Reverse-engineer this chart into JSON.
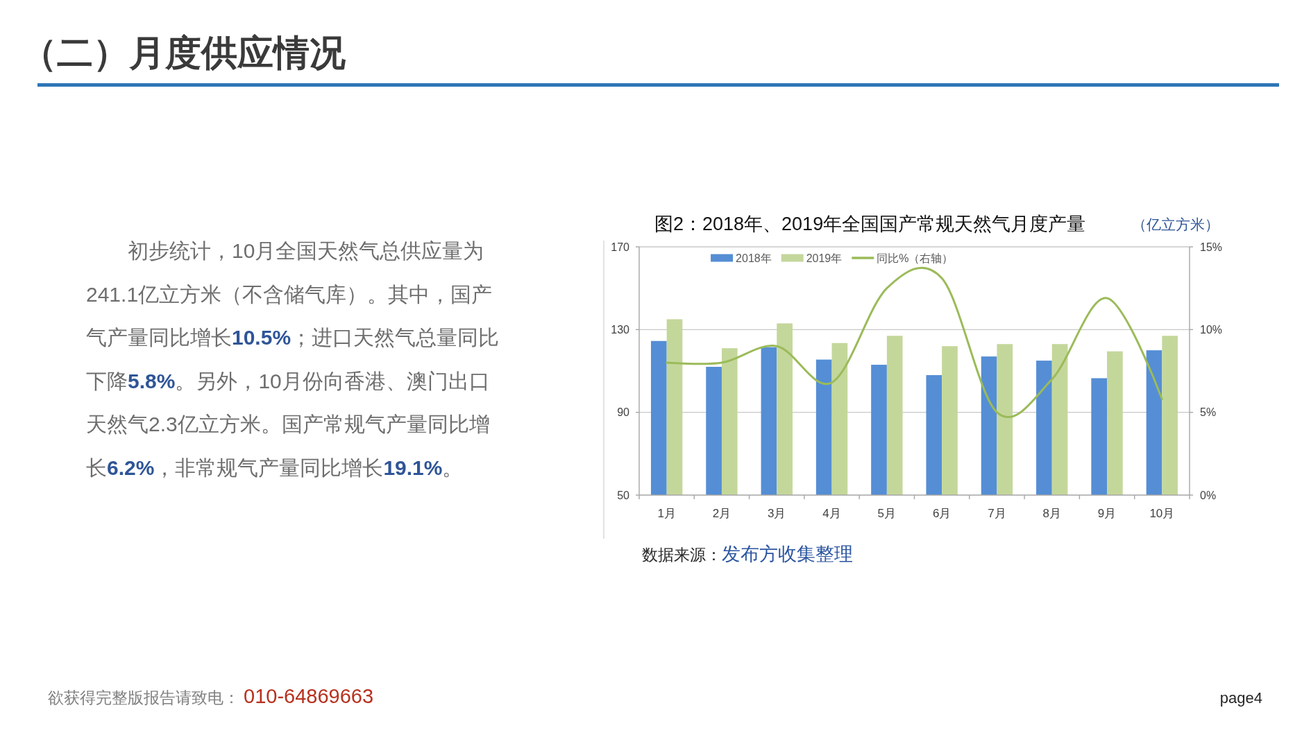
{
  "chart_data": {
    "type": "bar",
    "title": "图2：2018年、2019年全国国产常规天然气月度产量",
    "categories": [
      "1月",
      "2月",
      "3月",
      "4月",
      "5月",
      "6月",
      "7月",
      "8月",
      "9月",
      "10月"
    ],
    "series": [
      {
        "name": "2018年",
        "color": "#558ed5",
        "values": [
          124.5,
          112,
          121.5,
          115.5,
          113,
          108,
          117,
          115,
          106.5,
          120
        ]
      },
      {
        "name": "2019年",
        "color": "#c4d79b",
        "values": [
          135,
          121,
          133,
          123.5,
          127,
          122,
          123,
          123,
          119.5,
          127
        ]
      },
      {
        "name": "同比%（右轴）",
        "type": "line",
        "axis": "y2",
        "color": "#9bbb59",
        "values": [
          8,
          8,
          9,
          6.8,
          12.5,
          13.1,
          5,
          7,
          11.9,
          5.8
        ]
      }
    ],
    "ylim": [
      50,
      170
    ],
    "yticks": [
      50,
      90,
      130,
      170
    ],
    "y2lim": [
      0,
      15
    ],
    "y2ticks": [
      {
        "value": 0,
        "label": "0%"
      },
      {
        "value": 5,
        "label": "5%"
      },
      {
        "value": 10,
        "label": "10%"
      },
      {
        "value": 15,
        "label": "15%"
      }
    ],
    "grid": "y",
    "legend": "top",
    "annotations": [
      "（二）月度供应情况",
      "（亿立方米）",
      "初步统计，10月全国天然气总供应量为241.1亿立方米（不含储气库）。其中，国产气产量同比增长10.5%；进口天然气总量同比下降5.8%。另外，10月份向香港、澳门出口天然气2.3亿立方米。国产常规气产量同比增长6.2%，非常规气产量同比增长19.1%。",
      "数据来源：",
      "发布方收集整理",
      "欲获得完整版报告请致电：",
      "010-64869663",
      "page4"
    ]
  }
}
